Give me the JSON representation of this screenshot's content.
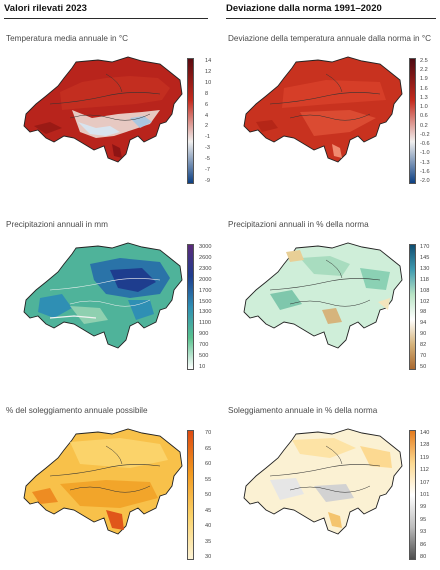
{
  "headers": {
    "left": "Valori rilevati 2023",
    "right": "Deviazione dalla norma 1991–2020"
  },
  "panels": [
    {
      "caption": "Temperatura media annuale in °C",
      "scale": [
        "14",
        "12",
        "10",
        "8",
        "6",
        "4",
        "2",
        "-1",
        "-3",
        "-5",
        "-7",
        "-9"
      ],
      "colors": [
        "#5a0a10",
        "#c42a1d",
        "#f0efee",
        "#0c3f82"
      ]
    },
    {
      "caption": "Deviazione della temperatura annuale dalla norma in °C",
      "scale": [
        "2.5",
        "2.2",
        "1.9",
        "1.6",
        "1.3",
        "1.0",
        "0.6",
        "0.2",
        "-0.2",
        "-0.6",
        "-1.0",
        "-1.3",
        "-1.6",
        "-2.0"
      ],
      "colors": [
        "#4e0a12",
        "#c42a1d",
        "#f0efee",
        "#0c3f82"
      ]
    },
    {
      "caption": "Precipitazioni annuali in mm",
      "scale": [
        "3000",
        "2600",
        "2300",
        "2000",
        "1700",
        "1500",
        "1300",
        "1100",
        "900",
        "700",
        "500",
        "10"
      ],
      "colors": [
        "#5b2a7a",
        "#1e3d8e",
        "#2f8fb4",
        "#59c28f",
        "#ffffff"
      ]
    },
    {
      "caption": "Precipitazioni annuali in % della norma",
      "scale": [
        "170",
        "145",
        "130",
        "118",
        "108",
        "102",
        "98",
        "94",
        "90",
        "82",
        "70",
        "50"
      ],
      "colors": [
        "#0f4d71",
        "#3f9bb0",
        "#b9e4c5",
        "#ffffff",
        "#d6b47c",
        "#a8672e"
      ]
    },
    {
      "caption": "% del soleggiamento annuale possibile",
      "scale": [
        "70",
        "65",
        "60",
        "55",
        "50",
        "45",
        "40",
        "35",
        "30"
      ],
      "colors": [
        "#dd4a12",
        "#f29a1f",
        "#fbd36a",
        "#fdf3d6"
      ]
    },
    {
      "caption": "Soleggiamento annuale in % della norma",
      "scale": [
        "140",
        "128",
        "119",
        "112",
        "107",
        "101",
        "99",
        "95",
        "93",
        "86",
        "80"
      ],
      "colors": [
        "#e47b1d",
        "#fcd991",
        "#ffffff",
        "#bdbdbd",
        "#4d4d4d"
      ]
    }
  ]
}
